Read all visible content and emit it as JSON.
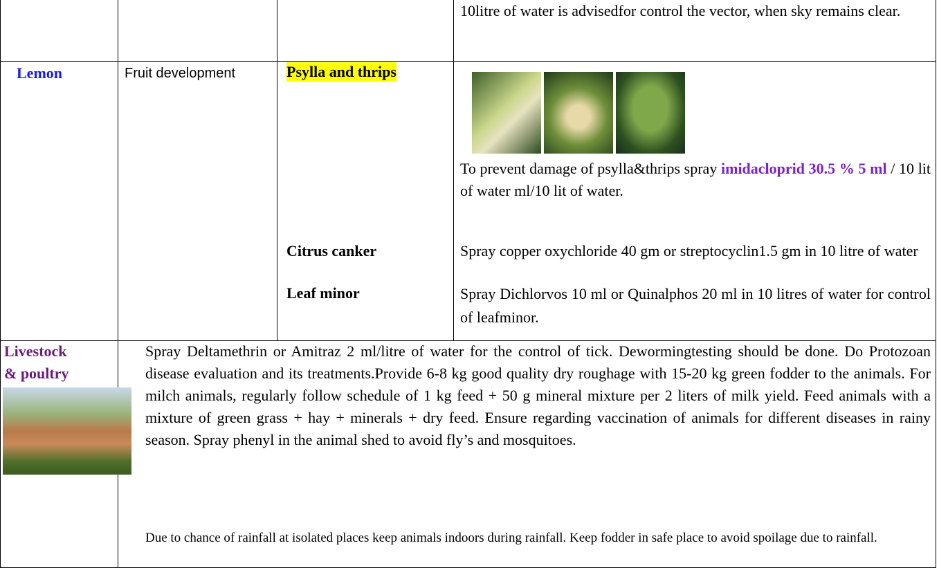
{
  "table": {
    "row_0": {
      "advice": "10litre of water is advisedfor control the vector, when sky remains clear."
    },
    "row_1": {
      "crop": "Lemon",
      "stage": "Fruit development",
      "pests": [
        {
          "name": "Psylla and thrips",
          "advice": {
            "before": "To prevent damage of psylla&thrips spray",
            "chemical": "imidacloprid 30.5 % 5 ml",
            "after": "/ 10 lit of water ml/10 lit of water."
          }
        },
        {
          "name": "Citrus canker",
          "advice": "Spray copper oxychloride 40 gm or streptocyclin1.5 gm in 10 litre of water"
        },
        {
          "name": "Leaf minor",
          "advice": "Spray Dichlorvos 10 ml or Quinalphos 20 ml in 10 litres of water for control of leafminor."
        }
      ]
    },
    "row_2": {
      "title_line_1": "Livestock",
      "title_line_2": "& poultry",
      "advice": "Spray Deltamethrin or Amitraz 2 ml/litre of water for the control of tick. Dewormingtesting should be done. Do Protozoan disease evaluation and its treatments.Provide 6-8 kg good quality dry roughage with 15-20 kg green fodder to the animals. For milch animals, regularly follow schedule of 1 kg feed + 50 g mineral mixture per 2 liters of milk yield. Feed animals with a mixture of green grass + hay + minerals + dry feed. Ensure regarding vaccination of animals for different diseases in rainy season. Spray phenyl in the animal shed to avoid fly’s and mosquitoes.",
      "note": "Due to chance of rainfall at isolated places keep animals indoors during rainfall. Keep fodder in safe place to avoid spoilage due to rainfall."
    }
  }
}
